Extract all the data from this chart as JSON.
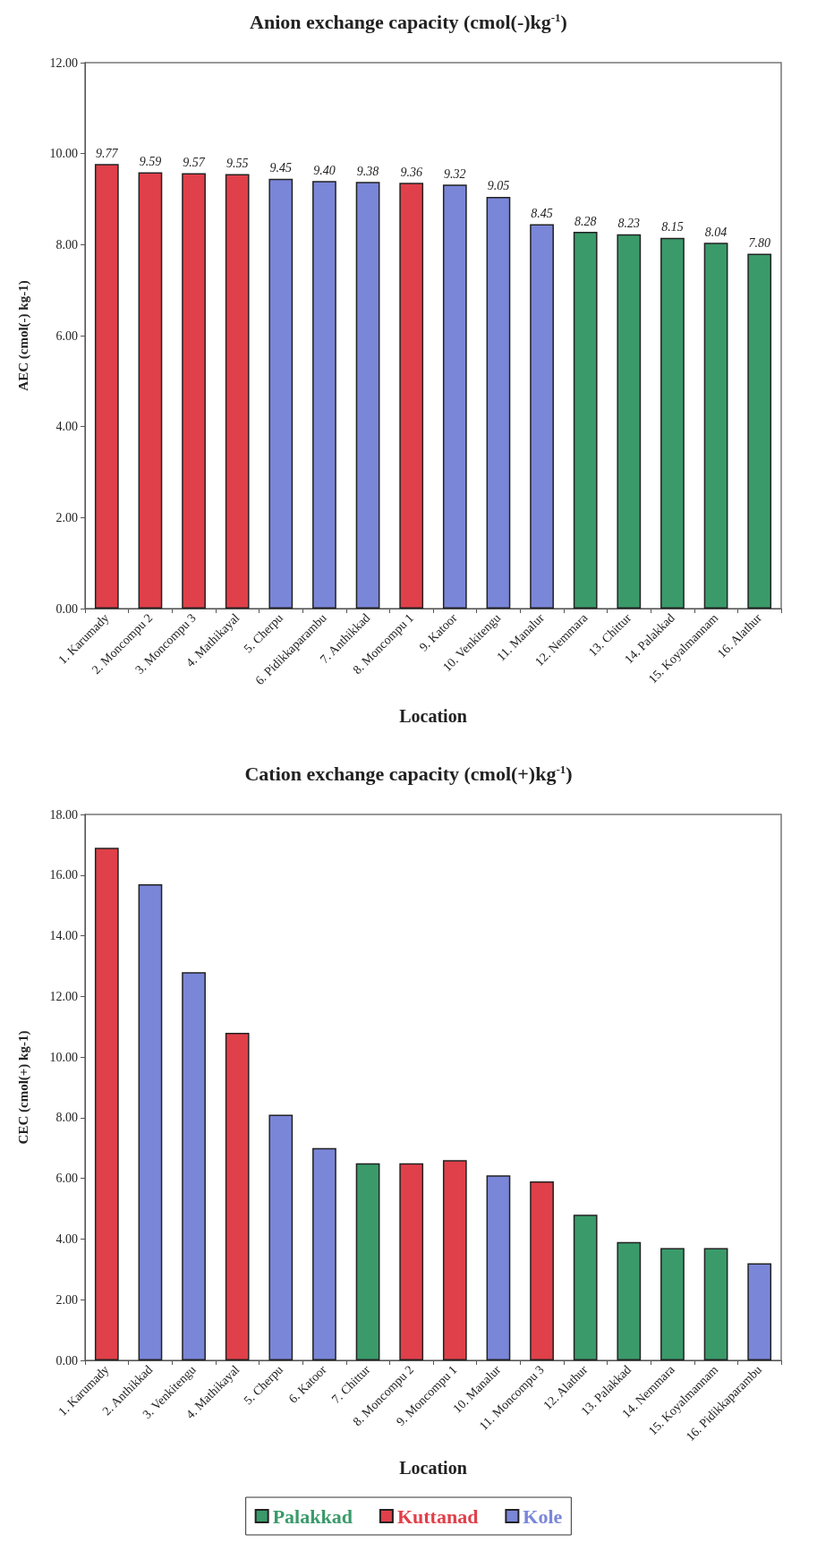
{
  "chart_data": [
    {
      "type": "bar",
      "title": "Anion exchange capacity (cmol(-)kg$^{-1}$)",
      "xlabel": "Location",
      "ylabel": "AEC (cmol(-) kg-1)",
      "categories": [
        "1. Karumady",
        "2. Moncompu 2",
        "3. Moncompu 3",
        "4. Mathikayal",
        "5. Cherpu",
        "6. Pidikkaparambu",
        "7. Anthikkad",
        "8. Moncompu 1",
        "9. Katoor",
        "10. Venkitengu",
        "11. Manalur",
        "12. Nemmara",
        "13. Chittur",
        "14. Palakkad",
        "15. Koyalmannam",
        "16. Alathur"
      ],
      "stacked": true,
      "series": [
        {
          "color": "#3a9a6a",
          "values": [
            null,
            null,
            null,
            null,
            null,
            null,
            null,
            null,
            null,
            null,
            null,
            8.28,
            8.23,
            8.15,
            8.04,
            7.8
          ],
          "value_labels": [
            null,
            null,
            null,
            null,
            null,
            null,
            null,
            null,
            null,
            null,
            null,
            "8.28",
            "8.23",
            "8.15",
            "8.04",
            "7.80"
          ]
        },
        {
          "color": "#e0404a",
          "values": [
            9.77,
            9.59,
            9.57,
            9.55,
            null,
            null,
            null,
            9.36,
            null,
            null,
            null,
            null,
            null,
            null,
            null,
            null
          ],
          "value_labels": [
            "9.77",
            "9.59",
            "9.57",
            "9.55",
            null,
            null,
            null,
            "9.36",
            null,
            null,
            null,
            null,
            null,
            null,
            null,
            null
          ]
        },
        {
          "color": "#7a86d8",
          "values": [
            null,
            null,
            null,
            null,
            9.45,
            9.4,
            9.38,
            null,
            9.32,
            9.05,
            8.45,
            null,
            null,
            null,
            null,
            null
          ],
          "value_labels": [
            null,
            null,
            null,
            null,
            "9.45",
            "9.40",
            "9.38",
            null,
            "9.32",
            "9.05",
            "8.45",
            null,
            null,
            null,
            null,
            null
          ]
        }
      ],
      "ylim": [
        0,
        12
      ],
      "yticks": [
        {
          "value": 0,
          "label": "0.00"
        },
        {
          "value": 2,
          "label": "2.00"
        },
        {
          "value": 4,
          "label": "4.00"
        },
        {
          "value": 6,
          "label": "6.00"
        },
        {
          "value": 8,
          "label": "8.00"
        },
        {
          "value": 10,
          "label": "10.00"
        },
        {
          "value": 12,
          "label": "12.00"
        }
      ]
    },
    {
      "type": "bar",
      "title": "Cation exchange capacity (cmol(+)kg$^{-1}$)",
      "xlabel": "Location",
      "ylabel": "CEC (cmol(+) kg-1)",
      "categories": [
        "1. Karumady",
        "2. Anthikkad",
        "3. Venkitengu",
        "4. Mathikayal",
        "5. Cherpu",
        "6. Katoor",
        "7. Chittur",
        "8. Moncompu 2",
        "9. Moncompu 1",
        "10. Manalur",
        "11. Moncompu 3",
        "12. Alathur",
        "13. Palakkad",
        "14. Nemmara",
        "15. Koyalmannam",
        "16. Pidikkaparambu"
      ],
      "stacked": true,
      "series": [
        {
          "name": "Palakkad",
          "color": "#3a9a6a",
          "values": [
            null,
            null,
            null,
            null,
            null,
            null,
            6.5,
            null,
            null,
            null,
            null,
            4.8,
            3.9,
            3.7,
            3.7,
            null
          ]
        },
        {
          "name": "Kuttanad",
          "color": "#e0404a",
          "values": [
            16.9,
            null,
            null,
            10.8,
            null,
            null,
            null,
            6.5,
            6.6,
            null,
            5.9,
            null,
            null,
            null,
            null,
            null
          ]
        },
        {
          "name": "Kole",
          "color": "#7a86d8",
          "values": [
            null,
            15.7,
            12.8,
            null,
            8.1,
            7.0,
            null,
            null,
            null,
            6.1,
            null,
            null,
            null,
            null,
            null,
            3.2
          ]
        }
      ],
      "ylim": [
        0,
        18
      ],
      "yticks": [
        {
          "value": 0,
          "label": "0.00"
        },
        {
          "value": 2,
          "label": "2.00"
        },
        {
          "value": 4,
          "label": "4.00"
        },
        {
          "value": 6,
          "label": "6.00"
        },
        {
          "value": 8,
          "label": "8.00"
        },
        {
          "value": 10,
          "label": "10.00"
        },
        {
          "value": 12,
          "label": "12.00"
        },
        {
          "value": 14,
          "label": "14.00"
        },
        {
          "value": 16,
          "label": "16.00"
        },
        {
          "value": 18,
          "label": "18.00"
        }
      ],
      "legend": "bottom"
    }
  ]
}
